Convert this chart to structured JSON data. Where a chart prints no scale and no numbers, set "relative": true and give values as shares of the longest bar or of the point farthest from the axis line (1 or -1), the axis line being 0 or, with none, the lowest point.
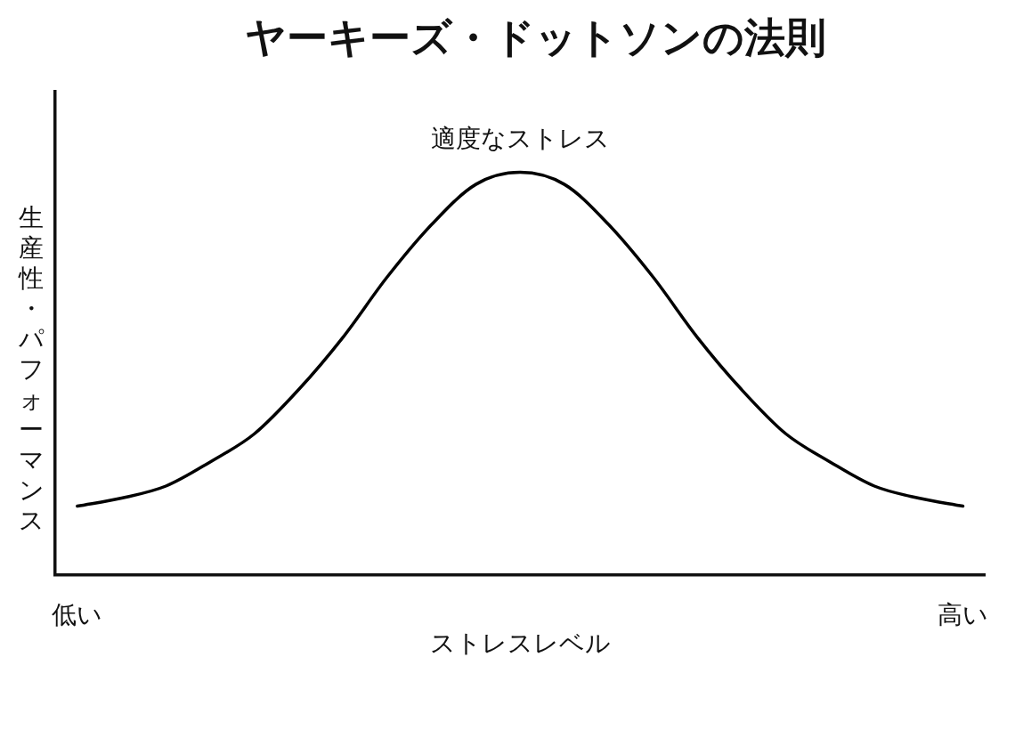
{
  "chart_data": {
    "type": "line",
    "title": "ヤーキーズ・ドットソンの法則",
    "xlabel": "ストレスレベル",
    "ylabel": "生産性・パフォーマンス",
    "annotations": [
      "適度なストレス"
    ],
    "relative": true,
    "legend": false,
    "grid": false,
    "marker": "none",
    "line_style": "solid",
    "categories": [
      "低い",
      null,
      null,
      null,
      null,
      null,
      null,
      null,
      null,
      null,
      null,
      null,
      null,
      null,
      null,
      null,
      null,
      null,
      null,
      null,
      "高い"
    ],
    "series": [
      {
        "color": "#000000",
        "values": [
          0.17,
          0.19,
          0.22,
          0.28,
          0.35,
          0.46,
          0.59,
          0.74,
          0.87,
          0.97,
          1.0,
          0.97,
          0.87,
          0.74,
          0.59,
          0.46,
          0.35,
          0.28,
          0.22,
          0.19,
          0.17
        ]
      }
    ]
  }
}
